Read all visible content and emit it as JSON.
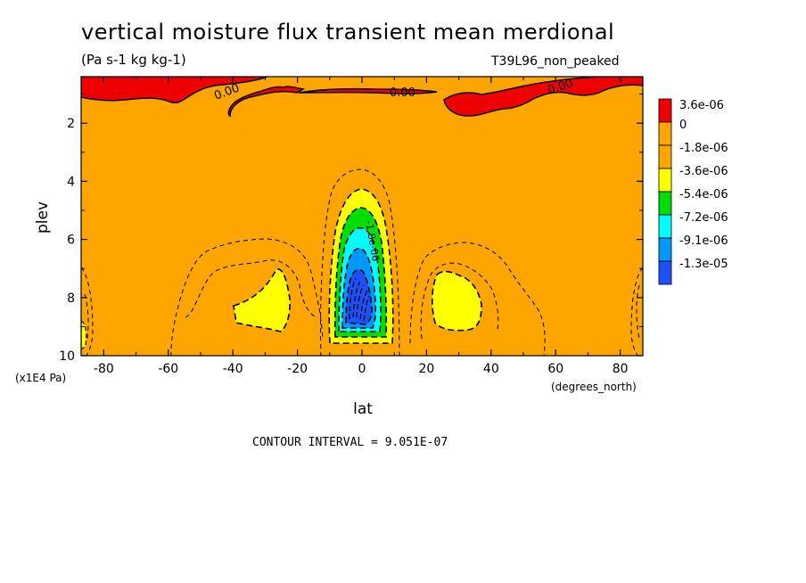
{
  "title": "vertical moisture flux transient mean merdional",
  "units": "(Pa s-1 kg kg-1)",
  "run_name": "T39L96_non_peaked",
  "contour_interval_label": "CONTOUR INTERVAL = 9.051E-07",
  "colors": {
    "red": "#ee0000",
    "orange": "#ffa500",
    "yellow": "#ffff00",
    "green": "#00dd00",
    "cyan": "#00ffff",
    "lightblue": "#0097ff",
    "blue": "#1e50ff"
  },
  "chart_data": {
    "type": "heatmap",
    "subtype": "filled-contour latitude-pressure section",
    "xlabel": "lat",
    "xunits": "(degrees_north)",
    "ylabel": "plev",
    "yunits": "(x1E4 Pa)",
    "xlim": [
      -87,
      87
    ],
    "ylim": [
      10,
      0.4
    ],
    "xticks": [
      -80,
      -60,
      -40,
      -20,
      0,
      20,
      40,
      60,
      80
    ],
    "yticks": [
      2,
      4,
      6,
      8,
      10
    ],
    "contour_labels": [
      "0.00",
      "0.00",
      "0.00",
      "-1.8e-06"
    ],
    "legend": {
      "placement": "right",
      "labels": [
        "3.6e-06",
        "0",
        "-1.8e-06",
        "-3.6e-06",
        "-5.4e-06",
        "-7.2e-06",
        "-9.1e-06",
        "-1.3e-05"
      ],
      "colors": [
        "#ee0000",
        "#ffa500",
        "#ffa500",
        "#ffff00",
        "#00dd00",
        "#00ffff",
        "#0097ff",
        "#1e50ff"
      ]
    }
  }
}
